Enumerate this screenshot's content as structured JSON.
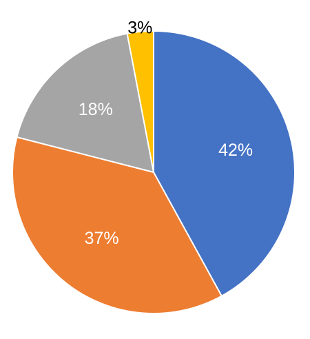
{
  "chart_data": {
    "type": "pie",
    "title": "",
    "legend": "none",
    "start_angle_deg": 0,
    "direction": "clockwise",
    "slices": [
      {
        "value": 42,
        "label": "42%",
        "color": "#4472C4",
        "label_color": "#FFFFFF"
      },
      {
        "value": 37,
        "label": "37%",
        "color": "#ED7D31",
        "label_color": "#FFFFFF"
      },
      {
        "value": 18,
        "label": "18%",
        "color": "#A5A5A5",
        "label_color": "#FFFFFF"
      },
      {
        "value": 3,
        "label": "3%",
        "color": "#FFC000",
        "label_color": "#000000"
      }
    ]
  }
}
